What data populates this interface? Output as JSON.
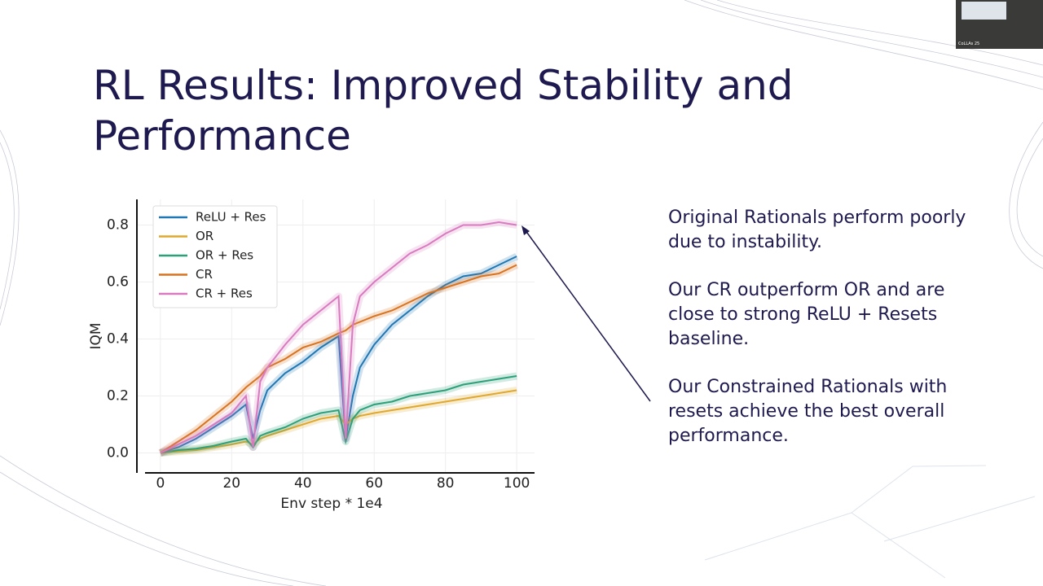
{
  "slide": {
    "title": "RL Results: Improved Stability and Performance",
    "paragraphs": [
      "Original Rationals perform poorly due to instability.",
      "Our CR outperform OR and are close to strong ReLU + Resets baseline.",
      "Our Constrained Rationals with resets achieve the best overall performance."
    ],
    "webcam_label": "CoLLAs 25"
  },
  "chart_data": {
    "type": "line",
    "x_label": "Env step * 1e4",
    "y_label": "IQM",
    "x": [
      0,
      5,
      10,
      15,
      20,
      24,
      26,
      28,
      30,
      35,
      40,
      45,
      50,
      52,
      54,
      56,
      60,
      65,
      70,
      75,
      80,
      85,
      90,
      95,
      100
    ],
    "series": [
      {
        "name": "ReLU + Res",
        "color": "#1f77b4",
        "values": [
          0,
          0.02,
          0.05,
          0.09,
          0.13,
          0.17,
          0.05,
          0.15,
          0.22,
          0.28,
          0.32,
          0.37,
          0.41,
          0.05,
          0.2,
          0.3,
          0.38,
          0.45,
          0.5,
          0.55,
          0.59,
          0.62,
          0.63,
          0.66,
          0.69
        ]
      },
      {
        "name": "OR",
        "color": "#e0a82e",
        "values": [
          0,
          0.005,
          0.01,
          0.02,
          0.03,
          0.04,
          0.03,
          0.05,
          0.06,
          0.08,
          0.1,
          0.12,
          0.13,
          0.1,
          0.12,
          0.13,
          0.14,
          0.15,
          0.16,
          0.17,
          0.18,
          0.19,
          0.2,
          0.21,
          0.22
        ]
      },
      {
        "name": "OR + Res",
        "color": "#2ca07a",
        "values": [
          0,
          0.01,
          0.015,
          0.025,
          0.04,
          0.05,
          0.02,
          0.06,
          0.07,
          0.09,
          0.12,
          0.14,
          0.15,
          0.04,
          0.12,
          0.15,
          0.17,
          0.18,
          0.2,
          0.21,
          0.22,
          0.24,
          0.25,
          0.26,
          0.27
        ]
      },
      {
        "name": "CR",
        "color": "#d9731f",
        "values": [
          0,
          0.04,
          0.08,
          0.13,
          0.18,
          0.23,
          0.25,
          0.27,
          0.3,
          0.33,
          0.37,
          0.39,
          0.42,
          0.43,
          0.45,
          0.46,
          0.48,
          0.5,
          0.53,
          0.56,
          0.58,
          0.6,
          0.62,
          0.63,
          0.66
        ]
      },
      {
        "name": "CR + Res",
        "color": "#d97ac0",
        "values": [
          0,
          0.03,
          0.06,
          0.1,
          0.14,
          0.2,
          0.02,
          0.25,
          0.3,
          0.38,
          0.45,
          0.5,
          0.55,
          0.05,
          0.45,
          0.55,
          0.6,
          0.65,
          0.7,
          0.73,
          0.77,
          0.8,
          0.8,
          0.81,
          0.8
        ]
      }
    ],
    "xlim": [
      -6.6,
      105
    ],
    "ylim": [
      -0.07,
      0.89
    ],
    "xticks": [
      0,
      20,
      40,
      60,
      80,
      100
    ],
    "yticks": [
      {
        "value": 0,
        "label": "0.0"
      },
      0.2,
      0.4,
      0.6,
      0.8
    ],
    "grid": true,
    "legend": "upper-left"
  }
}
